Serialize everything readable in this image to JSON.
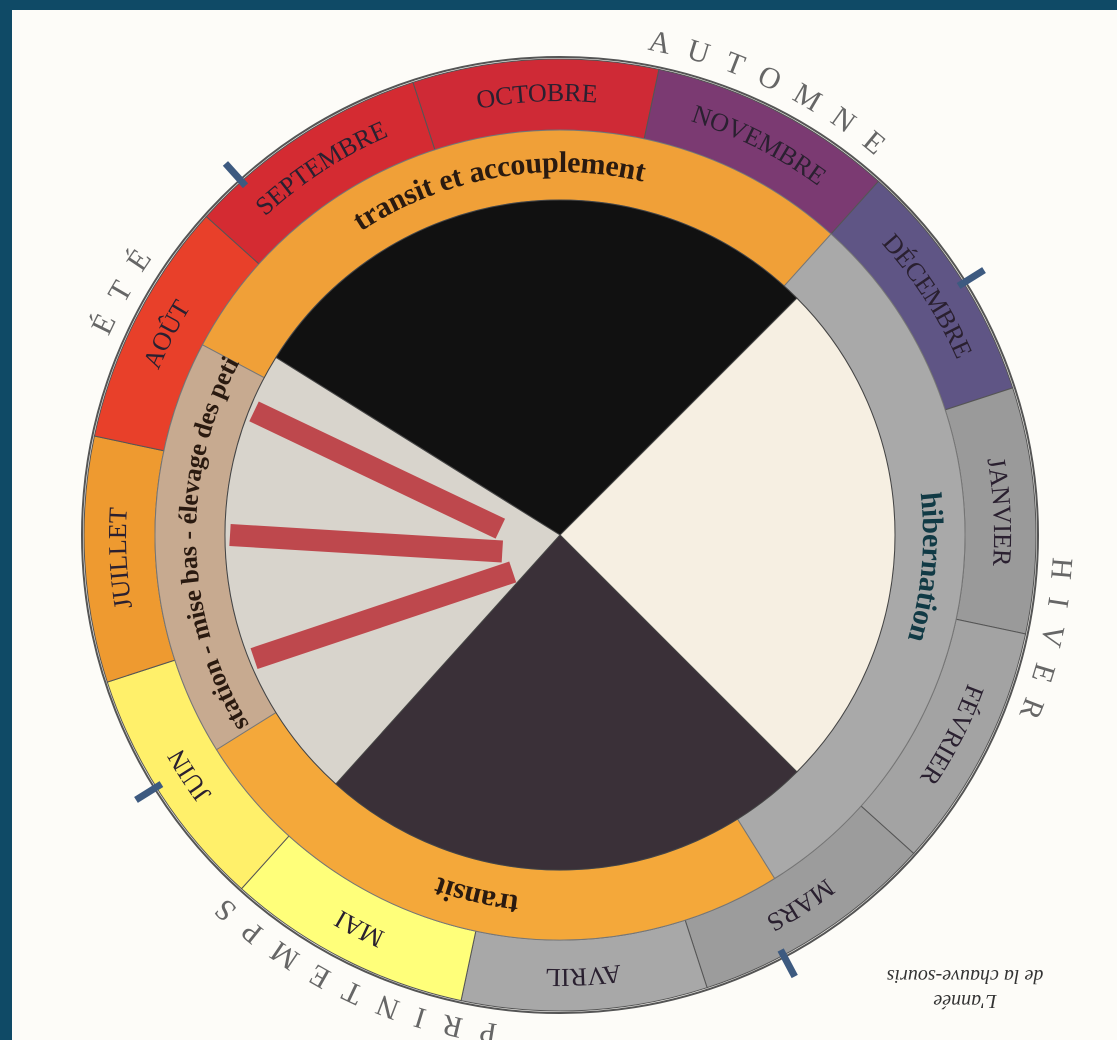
{
  "seasons": [
    "AUTOMNE",
    "HIVER",
    "PRINTEMPS",
    "ÉTÉ"
  ],
  "months": [
    {
      "name": "OCTOBRE",
      "color": "#cf2a36"
    },
    {
      "name": "NOVEMBRE",
      "color": "#7b3a72"
    },
    {
      "name": "DÉCEMBRE",
      "color": "#5f5585"
    },
    {
      "name": "JANVIER",
      "color": "#9a9a9a"
    },
    {
      "name": "FÉVRIER",
      "color": "#a3a3a3"
    },
    {
      "name": "MARS",
      "color": "#9c9c9c"
    },
    {
      "name": "AVRIL",
      "color": "#a8a8a8"
    },
    {
      "name": "MAI",
      "color": "#ffff7a"
    },
    {
      "name": "JUIN",
      "color": "#fff06a"
    },
    {
      "name": "JUILLET",
      "color": "#ee9a30"
    },
    {
      "name": "AOÛT",
      "color": "#e8402a"
    },
    {
      "name": "SEPTEMBRE",
      "color": "#d42b32"
    }
  ],
  "phases": [
    {
      "name": "transit et accouplement",
      "color": "#f0a038"
    },
    {
      "name": "hibernation",
      "color": "#a9a9a9"
    },
    {
      "name": "transit",
      "color": "#f4a83a"
    },
    {
      "name": "gestation - mise bas - élevage des petits",
      "color": "#c7aa90"
    }
  ],
  "caption": [
    "L'année",
    "de la chauve-souris"
  ]
}
